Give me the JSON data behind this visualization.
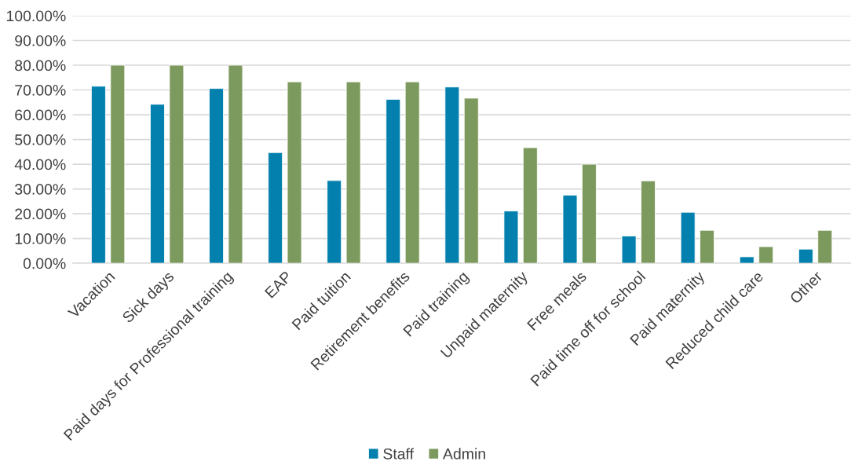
{
  "chart_data": {
    "type": "bar",
    "categories": [
      "Vacation",
      "Sick days",
      "Paid days for Professional training",
      "EAP",
      "Paid tuition",
      "Retirement benefits",
      "Paid training",
      "Unpaid maternity",
      "Free meals",
      "Paid time off for school",
      "Paid maternity",
      "Reduced child care",
      "Other"
    ],
    "series": [
      {
        "name": "Staff",
        "color": "#0380ae",
        "values": [
          71.5,
          64.2,
          70.6,
          44.7,
          33.4,
          66.2,
          71.2,
          21.1,
          27.5,
          11.0,
          20.6,
          2.6,
          5.7
        ]
      },
      {
        "name": "Admin",
        "color": "#7d9a5e",
        "values": [
          80.0,
          80.0,
          80.0,
          73.3,
          73.3,
          73.3,
          66.7,
          46.7,
          40.0,
          33.3,
          13.3,
          6.7,
          13.3
        ]
      }
    ],
    "ylim": [
      0,
      100
    ],
    "yticks": [
      {
        "value": 0,
        "label": "0.00%"
      },
      {
        "value": 10,
        "label": "10.00%"
      },
      {
        "value": 20,
        "label": "20.00%"
      },
      {
        "value": 30,
        "label": "30.00%"
      },
      {
        "value": 40,
        "label": "40.00%"
      },
      {
        "value": 50,
        "label": "50.00%"
      },
      {
        "value": 60,
        "label": "60.00%"
      },
      {
        "value": 70,
        "label": "70.00%"
      },
      {
        "value": 80,
        "label": "80.00%"
      },
      {
        "value": 90,
        "label": "90.00%"
      },
      {
        "value": 100,
        "label": "100.00%"
      }
    ],
    "grid": "y",
    "legend": "bottom"
  }
}
